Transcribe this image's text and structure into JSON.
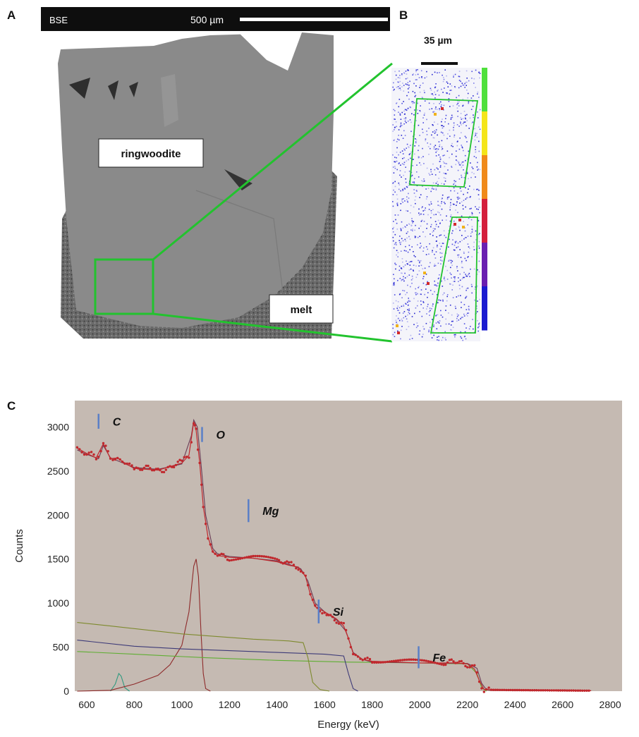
{
  "panels": {
    "a_letter": "A",
    "b_letter": "B",
    "c_letter": "C"
  },
  "panel_a": {
    "header_label": "BSE",
    "scale_label": "500 µm",
    "label_ringwoodite": "ringwoodite",
    "label_melt": "melt",
    "colors": {
      "zoom_box": "#22c32e",
      "matrix": "#8a8a8a",
      "melt": "#5e5e5e"
    }
  },
  "panel_b": {
    "scale_label": "35 µm",
    "colorbar": [
      "#1b1bd0",
      "#6a1fb0",
      "#d41f3c",
      "#f08a1a",
      "#f4e51a",
      "#4fe03c"
    ],
    "colors": {
      "roi": "#22c32e"
    }
  },
  "chart_data": {
    "type": "line",
    "title": "",
    "xlabel": "Energy (keV)",
    "ylabel": "Counts",
    "xlim": [
      550,
      2850
    ],
    "ylim": [
      0,
      3300
    ],
    "xticks": [
      600,
      800,
      1000,
      1200,
      1400,
      1600,
      1800,
      2000,
      2200,
      2400,
      2600,
      2800
    ],
    "yticks": [
      0,
      500,
      1000,
      1500,
      2000,
      2500,
      3000
    ],
    "background": "#c5bab2",
    "grid": false,
    "legend": "none",
    "element_markers": [
      {
        "label": "C",
        "x": 650,
        "y_top": 3150,
        "y_bottom": 2980
      },
      {
        "label": "O",
        "x": 1085,
        "y_top": 3000,
        "y_bottom": 2830
      },
      {
        "label": "Mg",
        "x": 1280,
        "y_top": 2180,
        "y_bottom": 1920
      },
      {
        "label": "Si",
        "x": 1575,
        "y_top": 1040,
        "y_bottom": 770
      },
      {
        "label": "Fe",
        "x": 1995,
        "y_top": 510,
        "y_bottom": 260
      }
    ],
    "series": [
      {
        "role": "measured",
        "color": "#c0282d",
        "x": [
          560,
          600,
          640,
          670,
          700,
          730,
          760,
          800,
          850,
          900,
          950,
          1000,
          1030,
          1050,
          1060,
          1075,
          1090,
          1110,
          1130,
          1150,
          1200,
          1300,
          1400,
          1450,
          1490,
          1520,
          1540,
          1560,
          1600,
          1650,
          1680,
          1700,
          1720,
          1760,
          1800,
          1900,
          2000,
          2100,
          2150,
          2200,
          2230,
          2250,
          2270,
          2300,
          2400,
          2500,
          2600,
          2720
        ],
        "y": [
          2760,
          2700,
          2650,
          2810,
          2640,
          2650,
          2590,
          2530,
          2520,
          2510,
          2550,
          2590,
          2680,
          3060,
          2960,
          2600,
          2100,
          1750,
          1580,
          1540,
          1520,
          1510,
          1470,
          1430,
          1410,
          1300,
          1100,
          960,
          900,
          820,
          740,
          600,
          430,
          360,
          340,
          330,
          320,
          320,
          320,
          310,
          250,
          120,
          20,
          15,
          12,
          10,
          8,
          5
        ]
      },
      {
        "role": "fit",
        "color": "#6b3b55",
        "x": [
          560,
          600,
          650,
          670,
          700,
          800,
          900,
          1000,
          1040,
          1050,
          1065,
          1080,
          1100,
          1130,
          1150,
          1200,
          1300,
          1400,
          1450,
          1500,
          1530,
          1560,
          1600,
          1650,
          1690,
          1720,
          1760,
          1800,
          2000,
          2200,
          2240,
          2260,
          2280,
          2300,
          2500,
          2720
        ],
        "y": [
          2740,
          2690,
          2640,
          2790,
          2650,
          2540,
          2520,
          2580,
          2900,
          3080,
          3000,
          2600,
          2000,
          1620,
          1560,
          1530,
          1510,
          1480,
          1440,
          1390,
          1250,
          1000,
          900,
          810,
          680,
          440,
          360,
          330,
          320,
          315,
          260,
          90,
          15,
          8,
          6,
          5
        ]
      },
      {
        "role": "component-green",
        "color": "#7e8a2e",
        "x": [
          560,
          700,
          1000,
          1300,
          1450,
          1510,
          1530,
          1550,
          1580,
          1620
        ],
        "y": [
          780,
          740,
          650,
          590,
          570,
          550,
          380,
          100,
          20,
          0
        ]
      },
      {
        "role": "component-purple",
        "color": "#3d3a78",
        "x": [
          560,
          800,
          1000,
          1200,
          1400,
          1600,
          1680,
          1700,
          1720,
          1740
        ],
        "y": [
          580,
          510,
          480,
          460,
          440,
          420,
          400,
          200,
          30,
          0
        ]
      },
      {
        "role": "component-lightgreen",
        "color": "#5fae33",
        "x": [
          560,
          800,
          1100,
          1400,
          1700,
          2000,
          2200,
          2240,
          2260,
          2280
        ],
        "y": [
          450,
          420,
          380,
          350,
          330,
          320,
          310,
          200,
          40,
          0
        ]
      },
      {
        "role": "component-peak-brown",
        "color": "#8e2a2a",
        "x": [
          560,
          700,
          800,
          900,
          950,
          1000,
          1030,
          1050,
          1060,
          1070,
          1080,
          1090,
          1100,
          1120
        ],
        "y": [
          0,
          10,
          80,
          180,
          300,
          520,
          900,
          1420,
          1500,
          1300,
          700,
          200,
          30,
          0
        ]
      },
      {
        "role": "component-carbon-teal",
        "color": "#2f9a7f",
        "x": [
          700,
          720,
          735,
          745,
          760,
          780
        ],
        "y": [
          0,
          80,
          200,
          170,
          40,
          0
        ]
      }
    ]
  }
}
